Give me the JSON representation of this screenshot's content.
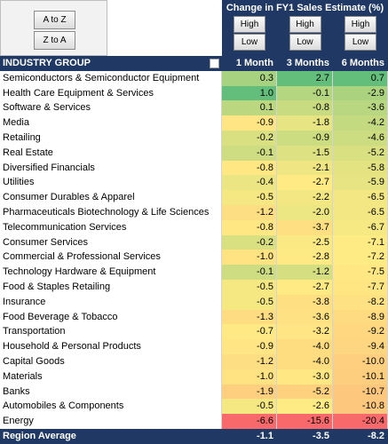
{
  "sort_buttons": [
    "A to Z",
    "Z to A"
  ],
  "header": {
    "title": "Change in FY1 Sales Estimate (%)",
    "column_buttons": [
      [
        "High",
        "Low"
      ],
      [
        "High",
        "Low"
      ],
      [
        "High",
        "Low"
      ]
    ]
  },
  "table": {
    "columns": [
      "INDUSTRY GROUP",
      "1 Month",
      "3 Months",
      "6 Months"
    ],
    "rows": [
      [
        "Semiconductors & Semiconductor Equipment",
        "0.3",
        "2.7",
        "0.7"
      ],
      [
        "Health Care Equipment & Services",
        "1.0",
        "-0.1",
        "-2.9"
      ],
      [
        "Software & Services",
        "0.1",
        "-0.8",
        "-3.6"
      ],
      [
        "Media",
        "-0.9",
        "-1.8",
        "-4.2"
      ],
      [
        "Retailing",
        "-0.2",
        "-0.9",
        "-4.6"
      ],
      [
        "Real Estate",
        "-0.1",
        "-1.5",
        "-5.2"
      ],
      [
        "Diversified Financials",
        "-0.8",
        "-2.1",
        "-5.8"
      ],
      [
        "Utilities",
        "-0.4",
        "-2.7",
        "-5.9"
      ],
      [
        "Consumer Durables & Apparel",
        "-0.5",
        "-2.2",
        "-6.5"
      ],
      [
        "Pharmaceuticals Biotechnology & Life Sciences",
        "-1.2",
        "-2.0",
        "-6.5"
      ],
      [
        "Telecommunication Services",
        "-0.8",
        "-3.7",
        "-6.7"
      ],
      [
        "Consumer Services",
        "-0.2",
        "-2.5",
        "-7.1"
      ],
      [
        "Commercial & Professional Services",
        "-1.0",
        "-2.8",
        "-7.2"
      ],
      [
        "Technology Hardware & Equipment",
        "-0.1",
        "-1.2",
        "-7.5"
      ],
      [
        "Food & Staples Retailing",
        "-0.5",
        "-2.7",
        "-7.7"
      ],
      [
        "Insurance",
        "-0.5",
        "-3.8",
        "-8.2"
      ],
      [
        "Food Beverage & Tobacco",
        "-1.3",
        "-3.6",
        "-8.9"
      ],
      [
        "Transportation",
        "-0.7",
        "-3.2",
        "-9.2"
      ],
      [
        "Household & Personal Products",
        "-0.9",
        "-4.0",
        "-9.4"
      ],
      [
        "Capital Goods",
        "-1.2",
        "-4.0",
        "-10.0"
      ],
      [
        "Materials",
        "-1.0",
        "-3.0",
        "-10.1"
      ],
      [
        "Banks",
        "-1.9",
        "-5.2",
        "-10.7"
      ],
      [
        "Automobiles & Components",
        "-0.5",
        "-2.6",
        "-10.8"
      ],
      [
        "Energy",
        "-6.6",
        "-15.6",
        "-20.4"
      ]
    ],
    "footer": [
      "Region Average",
      "-1.1",
      "-3.5",
      "-8.2"
    ],
    "color_scale": {
      "min": "#f8696b",
      "mid": "#ffeb84",
      "max": "#63be7b"
    }
  }
}
